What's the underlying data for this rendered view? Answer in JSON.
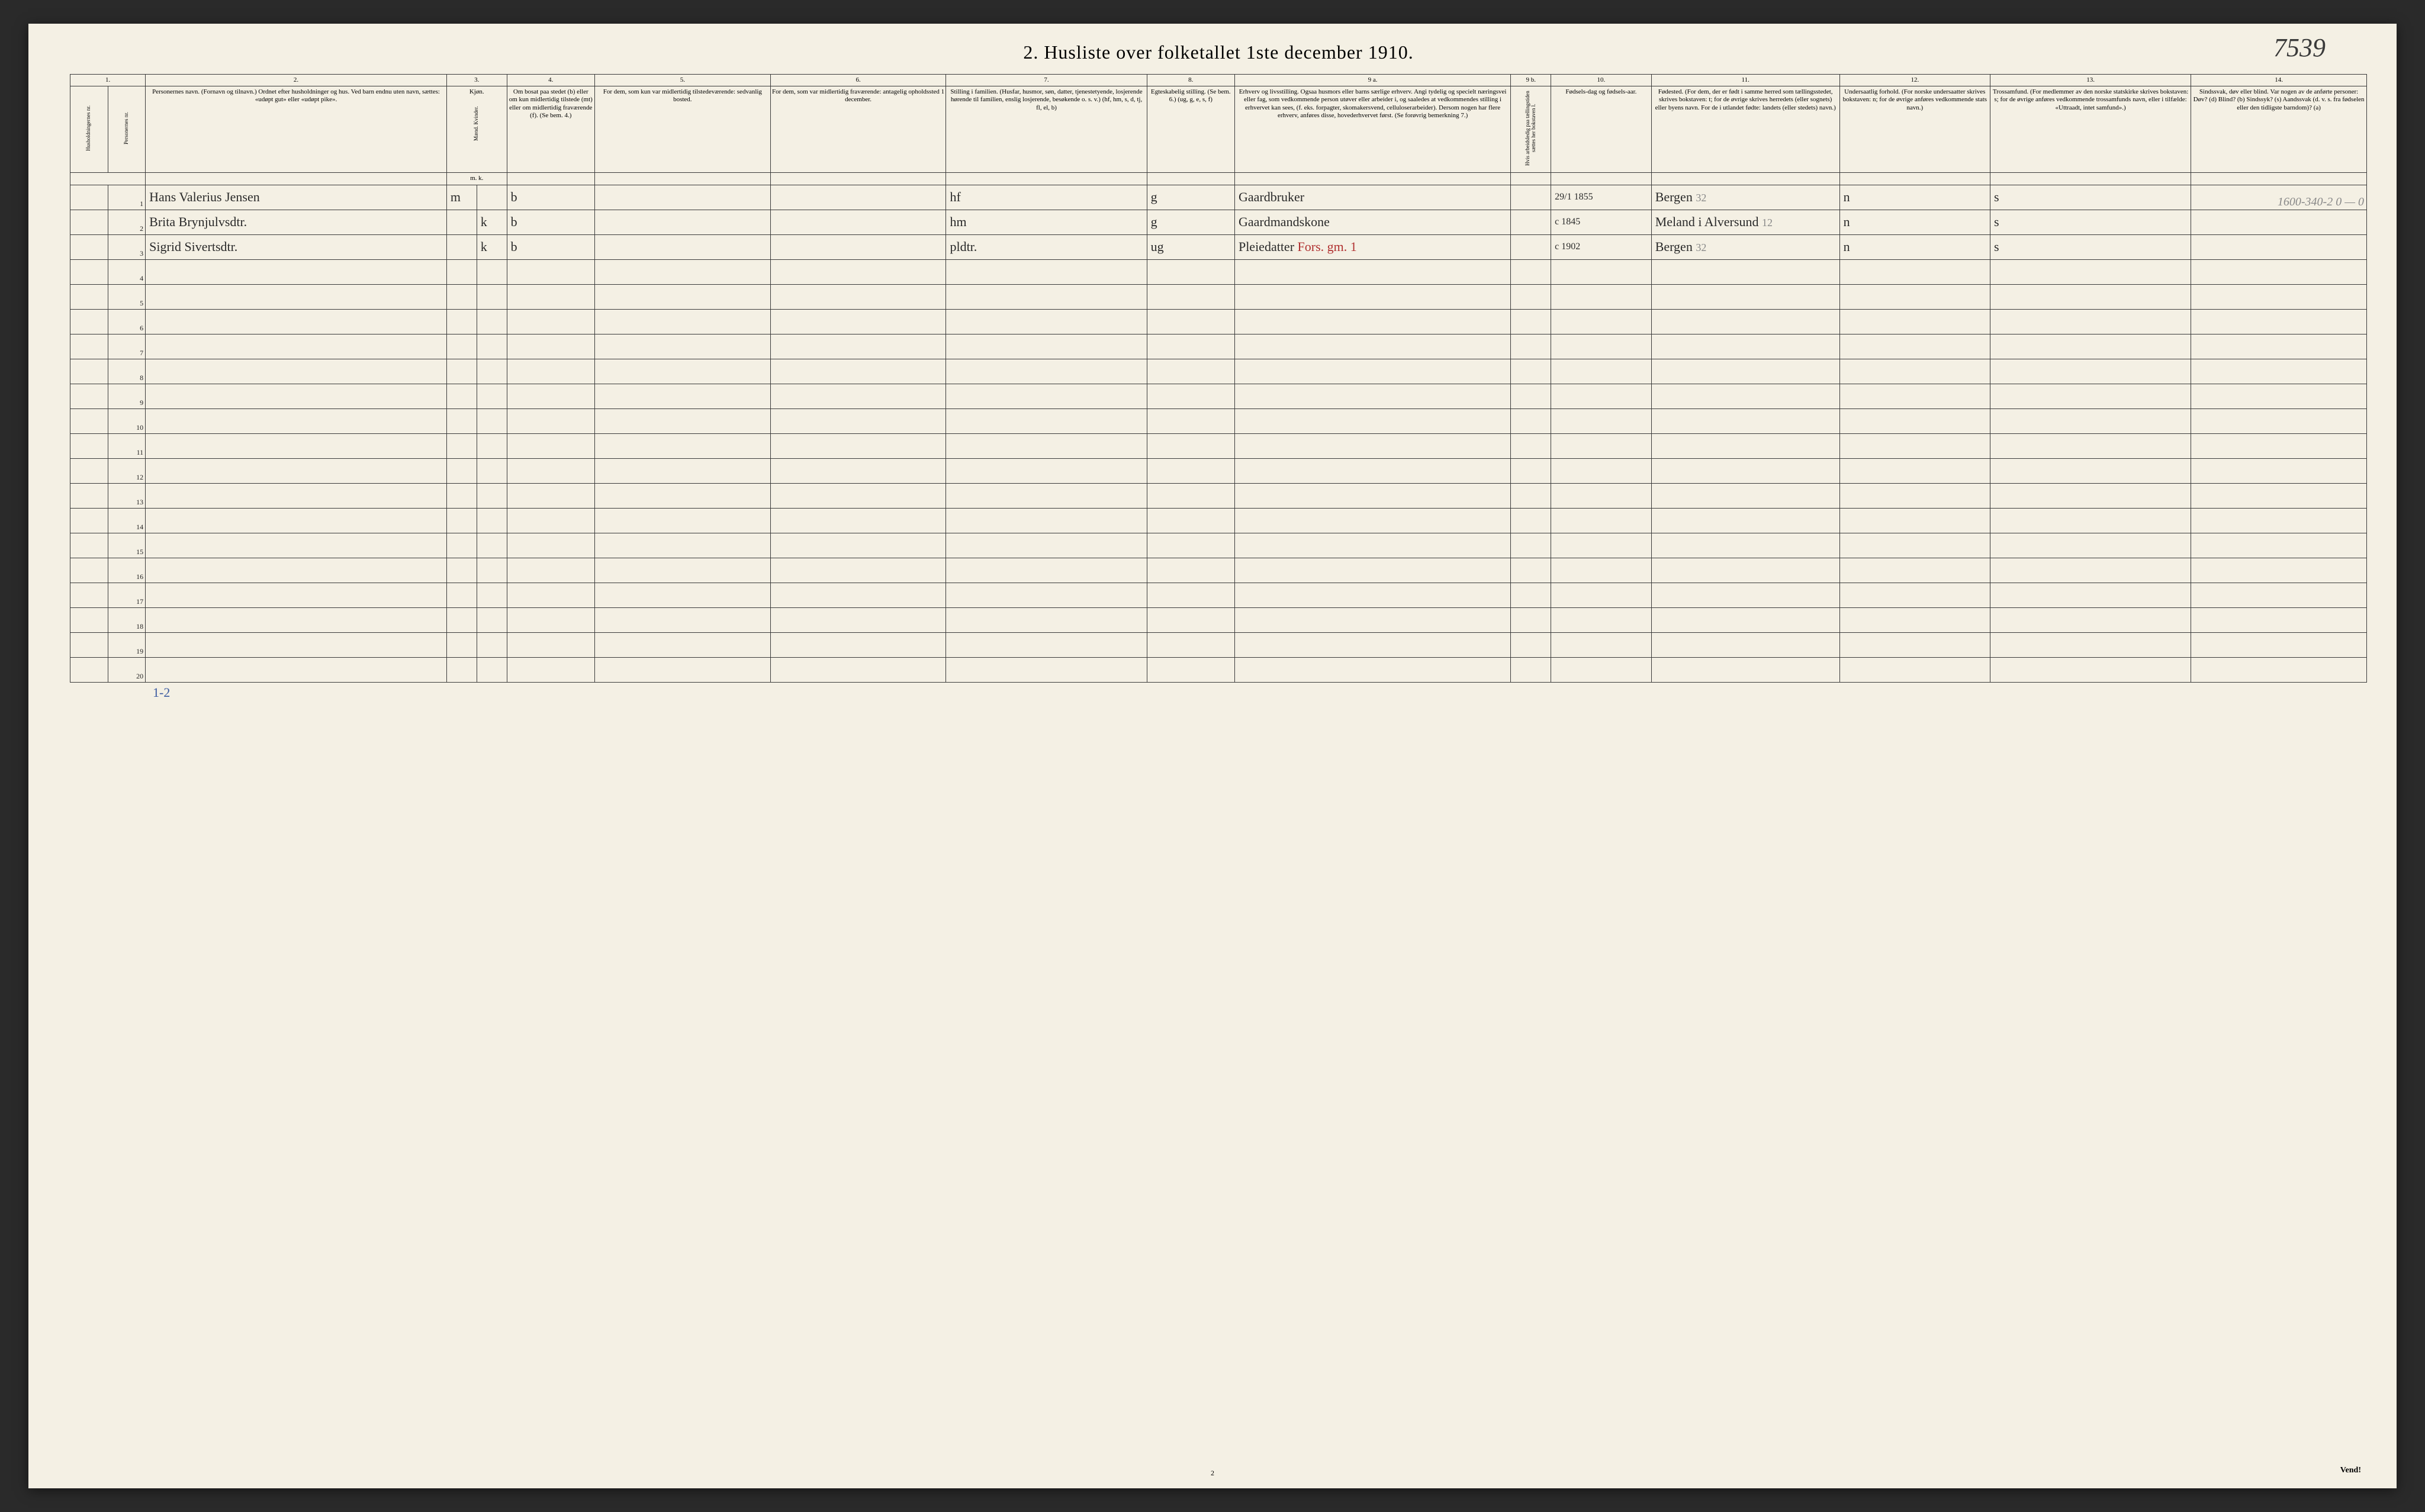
{
  "page": {
    "title": "2.  Husliste over folketallet 1ste december 1910.",
    "handwritten_top_right": "7539",
    "page_number_bottom": "2",
    "turn_indicator": "Vend!",
    "corner_pencil_annotation": "1600-340-2\n0 — 0",
    "bottom_blue_annotation": "1-2",
    "background_color": "#f4f0e4",
    "ink_color": "#2a2a2a",
    "red_ink_color": "#b03030",
    "blue_ink_color": "#3a5aa0",
    "pencil_color": "#888888",
    "border_color": "#3a3a3a"
  },
  "columns": {
    "numbers": [
      "1.",
      "2.",
      "3.",
      "4.",
      "5.",
      "6.",
      "7.",
      "8.",
      "9 a.",
      "9 b.",
      "10.",
      "11.",
      "12.",
      "13.",
      "14."
    ],
    "h1_vert": "Husholdningernes nr.",
    "h1b_vert": "Personernes nr.",
    "h2": "Personernes navn.\n(Fornavn og tilnavn.)\nOrdnet efter husholdninger og hus.\nVed barn endnu uten navn, sættes: «udøpt gut» eller «udøpt pike».",
    "h3": "Kjøn.",
    "h3_sub": "Mænd. Kvinder.",
    "h3_mk": "m.  k.",
    "h4": "Om bosat paa stedet (b) eller om kun midlertidig tilstede (mt) eller om midlertidig fraværende (f).\n(Se bem. 4.)",
    "h5": "For dem, som kun var midlertidig tilstedeværende:\nsedvanlig bosted.",
    "h6": "For dem, som var midlertidig fraværende:\nantagelig opholdssted 1 december.",
    "h7": "Stilling i familien.\n(Husfar, husmor, søn, datter, tjenestetyende, losjerende hørende til familien, enslig losjerende, besøkende o. s. v.)\n(hf, hm, s, d, tj, fl, el, b)",
    "h8": "Egteskabelig stilling.\n(Se bem. 6.)\n(ug, g, e, s, f)",
    "h9a": "Erhverv og livsstilling.\nOgsaa husmors eller barns særlige erhverv.\nAngi tydelig og specielt næringsvei eller fag, som vedkommende person utøver eller arbeider i, og saaledes at vedkommendes stilling i erhvervet kan sees, (f. eks. forpagter, skomakersvend, celluloserarbeider). Dersom nogen har flere erhverv, anføres disse, hovederhvervet først.\n(Se forøvrig bemerkning 7.)",
    "h9b_vert": "Hvis arbeidsledig paa tællingstiden sættes her bokstaven l.",
    "h10": "Fødsels-dag og fødsels-aar.",
    "h11": "Fødested.\n(For dem, der er født i samme herred som tællingsstedet, skrives bokstaven: t; for de øvrige skrives herredets (eller sognets) eller byens navn. For de i utlandet fødte: landets (eller stedets) navn.)",
    "h12": "Undersaatlig forhold.\n(For norske undersaatter skrives bokstaven: n; for de øvrige anføres vedkommende stats navn.)",
    "h13": "Trossamfund.\n(For medlemmer av den norske statskirke skrives bokstaven: s; for de øvrige anføres vedkommende trossamfunds navn, eller i tilfælde: «Uttraadt, intet samfund».)",
    "h14": "Sindssvak, døv eller blind.\nVar nogen av de anførte personer:\nDøv? (d)\nBlind? (b)\nSindssyk? (s)\nAandssvak (d. v. s. fra fødselen eller den tidligste barndom)? (a)"
  },
  "rows": [
    {
      "num": "1",
      "name": "Hans Valerius Jensen",
      "sex_m": "m",
      "sex_k": "",
      "presence": "b",
      "col5": "",
      "col6": "",
      "fam_status": "hf",
      "marital": "g",
      "occupation": "Gaardbruker",
      "occ_red": "",
      "col9b": "",
      "birth": "29/1 1855",
      "birthplace": "Bergen",
      "bplace_pencil": "32",
      "citizen": "n",
      "religion": "s",
      "disability": ""
    },
    {
      "num": "2",
      "name": "Brita Brynjulvsdtr.",
      "sex_m": "",
      "sex_k": "k",
      "presence": "b",
      "col5": "",
      "col6": "",
      "fam_status": "hm",
      "marital": "g",
      "occupation": "Gaardmandskone",
      "occ_red": "",
      "col9b": "",
      "birth": "c 1845",
      "birthplace": "Meland i Alversund",
      "bplace_pencil": "12",
      "citizen": "n",
      "religion": "s",
      "disability": ""
    },
    {
      "num": "3",
      "name": "Sigrid Sivertsdtr.",
      "sex_m": "",
      "sex_k": "k",
      "presence": "b",
      "col5": "",
      "col6": "",
      "fam_status": "pldtr.",
      "marital": "ug",
      "occupation": "Pleiedatter",
      "occ_red": "Fors. gm. 1",
      "col9b": "",
      "birth": "c 1902",
      "birthplace": "Bergen",
      "bplace_pencil": "32",
      "citizen": "n",
      "religion": "s",
      "disability": ""
    }
  ],
  "empty_row_numbers": [
    "4",
    "5",
    "6",
    "7",
    "8",
    "9",
    "10",
    "11",
    "12",
    "13",
    "14",
    "15",
    "16",
    "17",
    "18",
    "19",
    "20"
  ]
}
